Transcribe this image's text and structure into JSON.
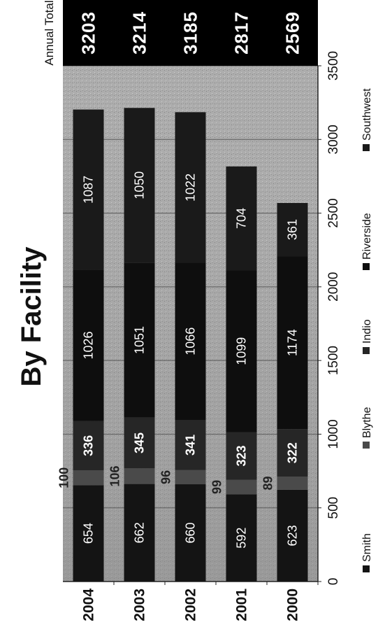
{
  "chart_data": {
    "type": "bar",
    "orientation": "horizontal",
    "stacked": true,
    "title": "By Facility",
    "categories": [
      "2000",
      "2001",
      "2002",
      "2003",
      "2004"
    ],
    "series": [
      {
        "name": "Smith",
        "values": [
          623,
          592,
          660,
          662,
          654
        ],
        "color": "#141414"
      },
      {
        "name": "Blythe",
        "values": [
          89,
          99,
          96,
          106,
          100
        ],
        "color": "#4a4a4a"
      },
      {
        "name": "Indio",
        "values": [
          322,
          323,
          341,
          345,
          336
        ],
        "color": "#262626"
      },
      {
        "name": "Riverside",
        "values": [
          1174,
          1099,
          1066,
          1051,
          1026
        ],
        "color": "#0e0e0e"
      },
      {
        "name": "Southwest",
        "values": [
          361,
          704,
          1022,
          1050,
          1087
        ],
        "color": "#1a1a1a"
      }
    ],
    "totals_header": "Annual Total",
    "totals": [
      2569,
      2817,
      3185,
      3214,
      3203
    ],
    "xlim": [
      0,
      3500
    ],
    "xticks": [
      0,
      500,
      1000,
      1500,
      2000,
      2500,
      3000,
      3500
    ],
    "grid": true,
    "legend_position": "bottom"
  }
}
